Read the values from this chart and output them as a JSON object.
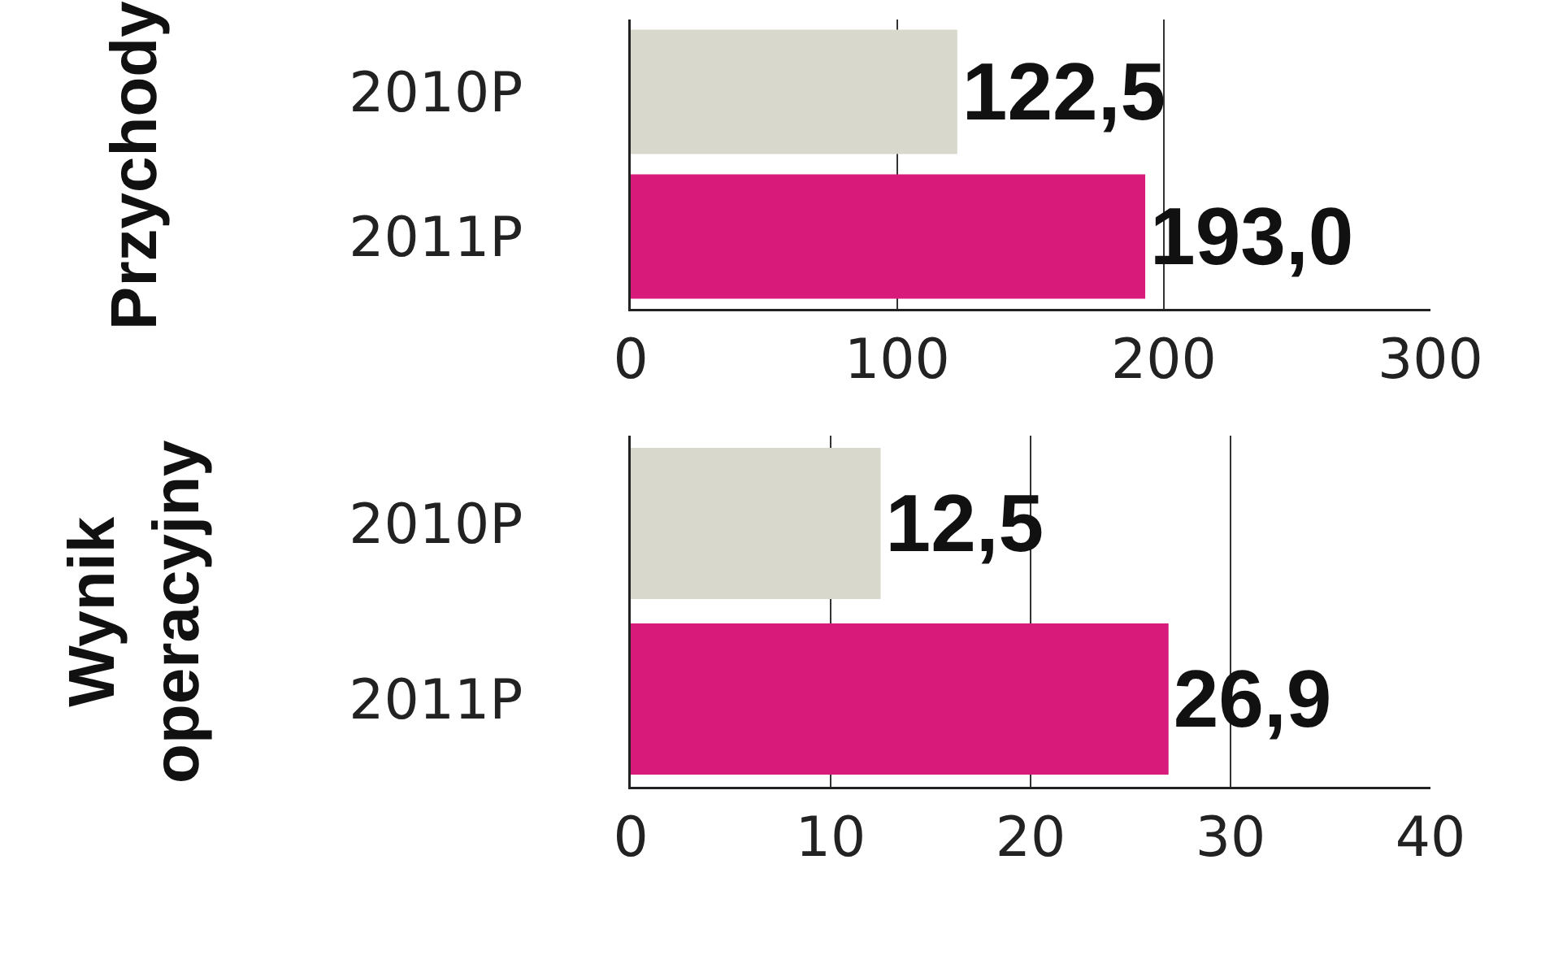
{
  "chart_data": [
    {
      "type": "bar",
      "orientation": "horizontal",
      "ylabel": "Przychody",
      "categories": [
        "2010P",
        "2011P"
      ],
      "values": [
        122.5,
        193.0
      ],
      "colors": [
        "#d9d8cc",
        "#d81b7a"
      ],
      "value_labels": [
        "122,5",
        "193,0"
      ],
      "xlim": [
        0,
        300
      ],
      "xticks": [
        0,
        100,
        200,
        300
      ],
      "grid": "x"
    },
    {
      "type": "bar",
      "orientation": "horizontal",
      "ylabel": "Wynik operacyjny",
      "categories": [
        "2010P",
        "2011P"
      ],
      "values": [
        12.5,
        26.9
      ],
      "colors": [
        "#d9d8cc",
        "#d81b7a"
      ],
      "value_labels": [
        "12,5",
        "26,9"
      ],
      "xlim": [
        0,
        40
      ],
      "xticks": [
        0,
        10,
        20,
        30,
        40
      ],
      "grid": "x"
    }
  ]
}
